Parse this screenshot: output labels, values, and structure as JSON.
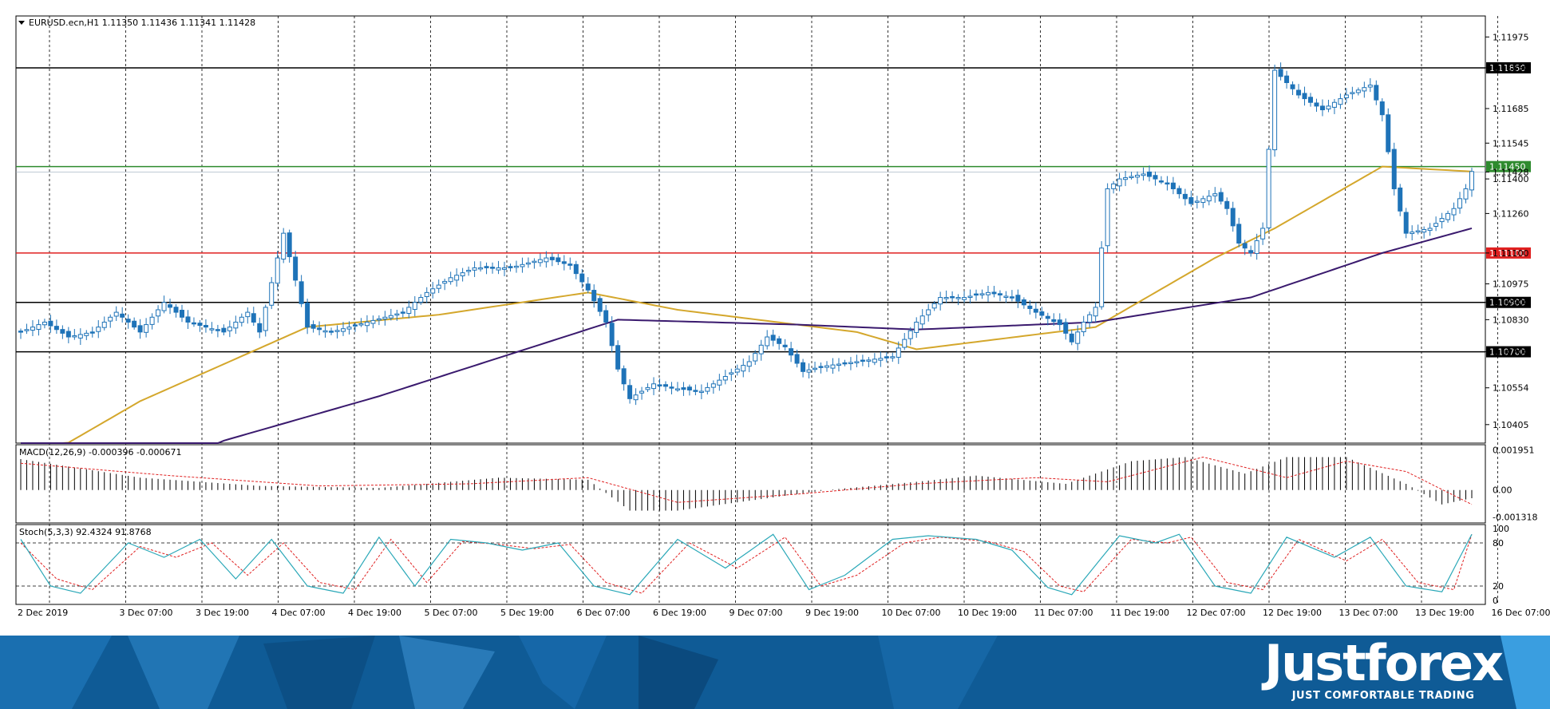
{
  "colors": {
    "candle_up": "#1e73b8",
    "candle_down": "#1e73b8",
    "ma_fast": "#d4a72c",
    "ma_slow": "#3a1a6e",
    "resistance_green": "#2e8b2e",
    "support_red": "#e02020",
    "level_black": "#000000",
    "stoch_main": "#2aa8b8",
    "stoch_signal": "#e02020",
    "macd_hist": "#000000",
    "macd_signal": "#e02020",
    "footer_bg": "#0f5b96"
  },
  "header": {
    "triangle_icon": "triangle-down-icon",
    "symbol_text": "EURUSD.ecn,H1  1.11350 1.11436 1.11341 1.11428"
  },
  "macd_header": "MACD(12,26,9) -0.000396 -0.000671",
  "stoch_header": "Stoch(5,3,3) 92.4324 91.8768",
  "brand": {
    "name": "Justforex",
    "tagline": "JUST COMFORTABLE TRADING"
  },
  "chart_data": [
    {
      "type": "candlestick",
      "title": "EURUSD.ecn,H1",
      "ohlc_last": [
        1.1135,
        1.11436,
        1.11341,
        1.11428
      ],
      "ylim": [
        1.1033,
        1.1206
      ],
      "y_ticks": [
        "1.11975",
        "1.11850",
        "1.11685",
        "1.11545",
        "1.11428",
        "1.11400",
        "1.11260",
        "1.11100",
        "1.10975",
        "1.10900",
        "1.10830",
        "1.10700",
        "1.10554",
        "1.10405"
      ],
      "x_ticks": [
        "2 Dec 2019",
        "3 Dec 07:00",
        "3 Dec 19:00",
        "4 Dec 07:00",
        "4 Dec 19:00",
        "5 Dec 07:00",
        "5 Dec 19:00",
        "6 Dec 07:00",
        "6 Dec 19:00",
        "9 Dec 07:00",
        "9 Dec 19:00",
        "10 Dec 07:00",
        "10 Dec 19:00",
        "11 Dec 07:00",
        "11 Dec 19:00",
        "12 Dec 07:00",
        "12 Dec 19:00",
        "13 Dec 07:00",
        "13 Dec 19:00",
        "16 Dec 07:00"
      ],
      "grid": true,
      "horizontal_levels": [
        {
          "value": 1.1185,
          "label": "1.11850",
          "color": "black"
        },
        {
          "value": 1.1145,
          "label": "1.11450",
          "color": "green"
        },
        {
          "value": 1.111,
          "label": "1.11100",
          "color": "red"
        },
        {
          "value": 1.109,
          "label": "1.10900",
          "color": "black"
        },
        {
          "value": 1.107,
          "label": "1.10700",
          "color": "black"
        }
      ],
      "current_price_label": "1.11428",
      "close_anchors": [
        [
          0,
          1.1078
        ],
        [
          4,
          1.1082
        ],
        [
          8,
          1.1076
        ],
        [
          12,
          1.1078
        ],
        [
          16,
          1.1086
        ],
        [
          20,
          1.1078
        ],
        [
          24,
          1.109
        ],
        [
          28,
          1.1082
        ],
        [
          34,
          1.1078
        ],
        [
          38,
          1.1086
        ],
        [
          40,
          1.1078
        ],
        [
          44,
          1.1118
        ],
        [
          48,
          1.108
        ],
        [
          52,
          1.1078
        ],
        [
          58,
          1.1082
        ],
        [
          64,
          1.1086
        ],
        [
          68,
          1.1094
        ],
        [
          72,
          1.11
        ],
        [
          76,
          1.1104
        ],
        [
          82,
          1.1104
        ],
        [
          88,
          1.1108
        ],
        [
          92,
          1.1105
        ],
        [
          95,
          1.1095
        ],
        [
          98,
          1.1082
        ],
        [
          100,
          1.1063
        ],
        [
          102,
          1.1051
        ],
        [
          106,
          1.1057
        ],
        [
          110,
          1.1055
        ],
        [
          114,
          1.1054
        ],
        [
          118,
          1.106
        ],
        [
          122,
          1.1066
        ],
        [
          125,
          1.1076
        ],
        [
          128,
          1.1072
        ],
        [
          131,
          1.1062
        ],
        [
          134,
          1.1064
        ],
        [
          140,
          1.1066
        ],
        [
          146,
          1.1068
        ],
        [
          150,
          1.1082
        ],
        [
          154,
          1.1092
        ],
        [
          158,
          1.1092
        ],
        [
          162,
          1.1094
        ],
        [
          166,
          1.1092
        ],
        [
          170,
          1.1086
        ],
        [
          174,
          1.1081
        ],
        [
          176,
          1.1074
        ],
        [
          178,
          1.1082
        ],
        [
          180,
          1.1088
        ],
        [
          182,
          1.1136
        ],
        [
          184,
          1.114
        ],
        [
          188,
          1.1142
        ],
        [
          192,
          1.1138
        ],
        [
          196,
          1.113
        ],
        [
          200,
          1.1134
        ],
        [
          202,
          1.1128
        ],
        [
          204,
          1.1114
        ],
        [
          206,
          1.111
        ],
        [
          208,
          1.112
        ],
        [
          210,
          1.1184
        ],
        [
          214,
          1.1174
        ],
        [
          218,
          1.1168
        ],
        [
          222,
          1.1174
        ],
        [
          226,
          1.1178
        ],
        [
          228,
          1.1166
        ],
        [
          230,
          1.1136
        ],
        [
          232,
          1.1118
        ],
        [
          236,
          1.112
        ],
        [
          240,
          1.1128
        ],
        [
          242,
          1.1136
        ],
        [
          243,
          1.1143
        ]
      ],
      "ma_fast": [
        [
          0,
          1.1022
        ],
        [
          20,
          1.105
        ],
        [
          48,
          1.108
        ],
        [
          70,
          1.1085
        ],
        [
          95,
          1.1094
        ],
        [
          110,
          1.1087
        ],
        [
          140,
          1.1078
        ],
        [
          150,
          1.1071
        ],
        [
          180,
          1.108
        ],
        [
          200,
          1.1108
        ],
        [
          210,
          1.112
        ],
        [
          228,
          1.1145
        ],
        [
          243,
          1.1143
        ]
      ],
      "ma_slow": [
        [
          0,
          1.099
        ],
        [
          34,
          1.1034
        ],
        [
          60,
          1.1052
        ],
        [
          100,
          1.1083
        ],
        [
          130,
          1.1081
        ],
        [
          150,
          1.1079
        ],
        [
          180,
          1.1082
        ],
        [
          206,
          1.1092
        ],
        [
          228,
          1.111
        ],
        [
          243,
          1.112
        ]
      ]
    },
    {
      "type": "bar",
      "title": "MACD(12,26,9)",
      "values_main": -0.000396,
      "values_signal": -0.000671,
      "y_ticks": [
        "0.001951",
        "0.00",
        "-0.001318"
      ],
      "ylim": [
        -0.0016,
        0.0022
      ],
      "hist_anchors": [
        [
          0,
          0.0015
        ],
        [
          20,
          0.0006
        ],
        [
          40,
          0.0002
        ],
        [
          60,
          0.0001
        ],
        [
          80,
          0.0006
        ],
        [
          95,
          0.0005
        ],
        [
          102,
          -0.001
        ],
        [
          110,
          -0.001
        ],
        [
          125,
          -0.0004
        ],
        [
          135,
          0.0
        ],
        [
          150,
          0.0004
        ],
        [
          160,
          0.0007
        ],
        [
          175,
          0.0003
        ],
        [
          186,
          0.0014
        ],
        [
          195,
          0.0016
        ],
        [
          205,
          0.0008
        ],
        [
          212,
          0.0016
        ],
        [
          222,
          0.0016
        ],
        [
          232,
          0.0003
        ],
        [
          238,
          -0.0007
        ],
        [
          243,
          -0.0004
        ]
      ],
      "signal_anchors": [
        [
          0,
          0.0013
        ],
        [
          25,
          0.0007
        ],
        [
          50,
          0.0002
        ],
        [
          75,
          0.0003
        ],
        [
          95,
          0.0006
        ],
        [
          110,
          -0.0006
        ],
        [
          130,
          -0.0002
        ],
        [
          150,
          0.0003
        ],
        [
          170,
          0.0006
        ],
        [
          182,
          0.0004
        ],
        [
          198,
          0.0016
        ],
        [
          212,
          0.0006
        ],
        [
          222,
          0.0014
        ],
        [
          232,
          0.0009
        ],
        [
          243,
          -0.0007
        ]
      ]
    },
    {
      "type": "line",
      "title": "Stoch(5,3,3)",
      "main": 92.4324,
      "signal": 91.8768,
      "y_ticks": [
        "100",
        "80",
        "20",
        "0"
      ],
      "ylim": [
        0,
        100
      ],
      "main_anchors": [
        [
          0,
          85
        ],
        [
          5,
          20
        ],
        [
          10,
          10
        ],
        [
          18,
          80
        ],
        [
          24,
          60
        ],
        [
          30,
          85
        ],
        [
          36,
          30
        ],
        [
          42,
          85
        ],
        [
          48,
          20
        ],
        [
          54,
          10
        ],
        [
          60,
          88
        ],
        [
          66,
          20
        ],
        [
          72,
          85
        ],
        [
          78,
          80
        ],
        [
          84,
          70
        ],
        [
          90,
          80
        ],
        [
          96,
          20
        ],
        [
          102,
          8
        ],
        [
          110,
          85
        ],
        [
          118,
          45
        ],
        [
          126,
          92
        ],
        [
          132,
          15
        ],
        [
          138,
          35
        ],
        [
          146,
          85
        ],
        [
          152,
          90
        ],
        [
          160,
          85
        ],
        [
          166,
          70
        ],
        [
          172,
          18
        ],
        [
          176,
          8
        ],
        [
          184,
          90
        ],
        [
          190,
          80
        ],
        [
          194,
          92
        ],
        [
          200,
          20
        ],
        [
          206,
          10
        ],
        [
          212,
          88
        ],
        [
          220,
          60
        ],
        [
          226,
          88
        ],
        [
          232,
          20
        ],
        [
          238,
          12
        ],
        [
          243,
          92
        ]
      ],
      "signal_anchors": [
        [
          0,
          80
        ],
        [
          6,
          30
        ],
        [
          12,
          15
        ],
        [
          20,
          75
        ],
        [
          26,
          60
        ],
        [
          32,
          80
        ],
        [
          38,
          35
        ],
        [
          44,
          80
        ],
        [
          50,
          25
        ],
        [
          56,
          15
        ],
        [
          62,
          85
        ],
        [
          68,
          25
        ],
        [
          74,
          82
        ],
        [
          80,
          78
        ],
        [
          86,
          72
        ],
        [
          92,
          78
        ],
        [
          98,
          25
        ],
        [
          104,
          10
        ],
        [
          112,
          80
        ],
        [
          120,
          45
        ],
        [
          128,
          88
        ],
        [
          134,
          20
        ],
        [
          140,
          35
        ],
        [
          148,
          80
        ],
        [
          154,
          88
        ],
        [
          162,
          82
        ],
        [
          168,
          68
        ],
        [
          174,
          20
        ],
        [
          178,
          12
        ],
        [
          186,
          85
        ],
        [
          192,
          80
        ],
        [
          196,
          88
        ],
        [
          202,
          25
        ],
        [
          208,
          15
        ],
        [
          214,
          85
        ],
        [
          222,
          55
        ],
        [
          228,
          85
        ],
        [
          234,
          25
        ],
        [
          240,
          15
        ],
        [
          243,
          92
        ]
      ]
    }
  ]
}
